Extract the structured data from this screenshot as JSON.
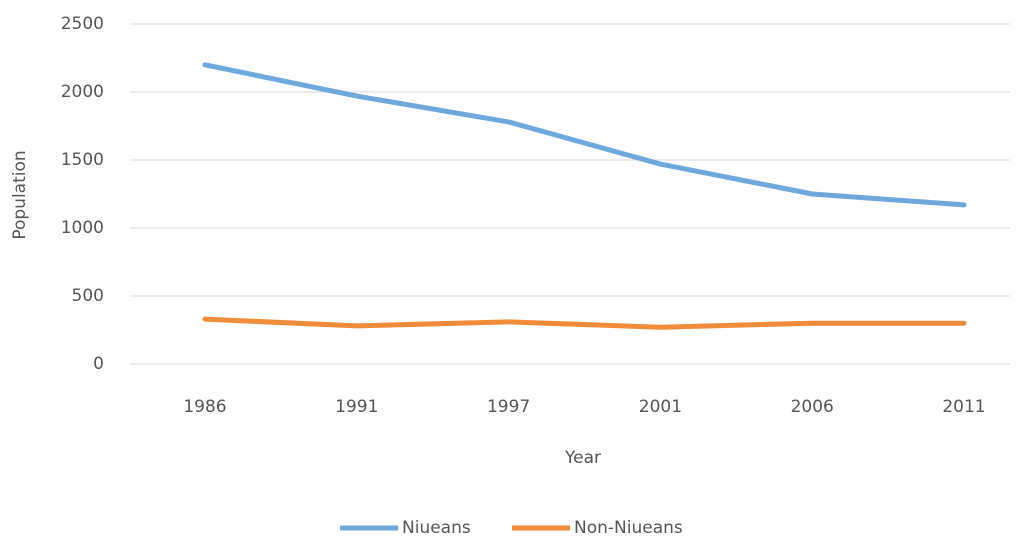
{
  "chart_data": {
    "type": "line",
    "x_label": "Year",
    "y_label": "Population",
    "categories": [
      "1986",
      "1991",
      "1997",
      "2001",
      "2006",
      "2011"
    ],
    "series": [
      {
        "name": "Niueans",
        "color": "#6fa8dc",
        "values": [
          2200,
          1970,
          1780,
          1470,
          1250,
          1170
        ]
      },
      {
        "name": "Non-Niueans",
        "color": "#f08c3a",
        "values": [
          330,
          280,
          310,
          270,
          300,
          300
        ]
      }
    ],
    "ylim": [
      0,
      2500
    ],
    "yticks": [
      0,
      500,
      1000,
      1500,
      2000,
      2500
    ],
    "grid": true,
    "legend": "bottom"
  }
}
